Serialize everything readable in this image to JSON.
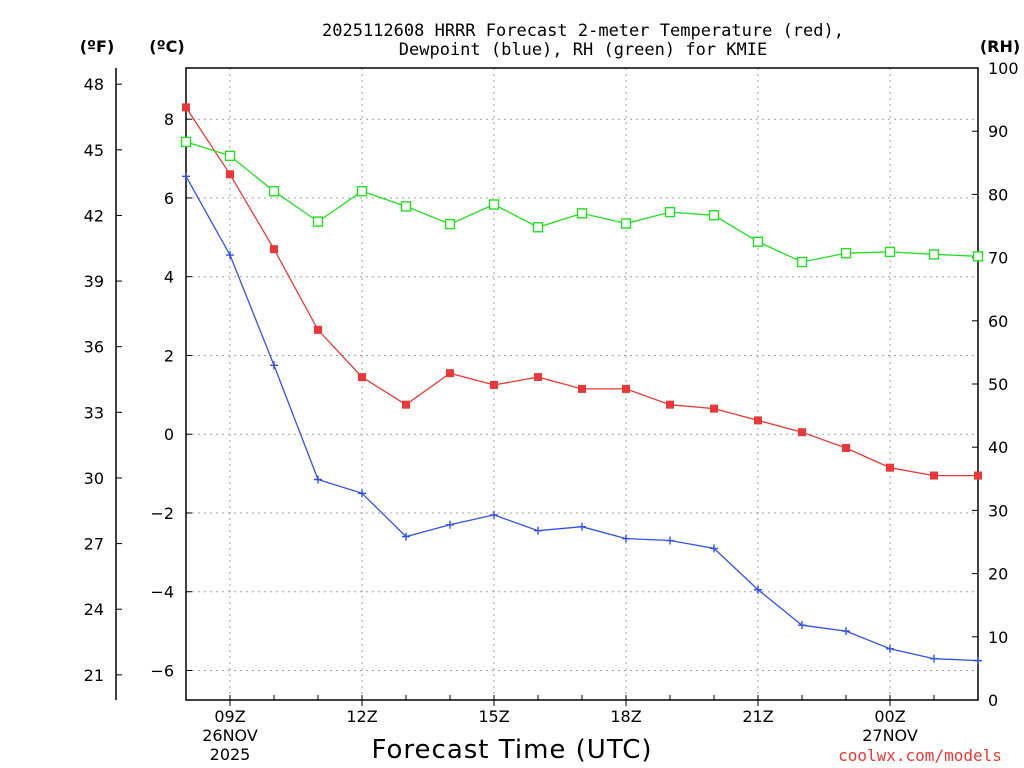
{
  "chart_data": {
    "type": "line",
    "title_line1": "2025112608 HRRR Forecast 2-meter Temperature (red),",
    "title_line2": "Dewpoint (blue), RH (green) for KMIE",
    "unit_f": "(ºF)",
    "unit_c": "(ºC)",
    "unit_rh": "(RH)",
    "xlabel": "Forecast Time (UTC)",
    "credit": "coolwx.com/models",
    "x_hours": [
      8,
      9,
      10,
      11,
      12,
      13,
      14,
      15,
      16,
      17,
      18,
      19,
      20,
      21,
      22,
      23,
      24,
      25,
      26
    ],
    "x_range": [
      8,
      26
    ],
    "c_range": [
      -6.75,
      9.3
    ],
    "rh_range": [
      0,
      100
    ],
    "f_ticks": [
      "48",
      "45",
      "42",
      "39",
      "36",
      "33",
      "30",
      "27",
      "24",
      "21"
    ],
    "c_ticks": [
      "8",
      "6",
      "4",
      "2",
      "0",
      "−2",
      "−4",
      "−6"
    ],
    "rh_ticks": [
      "100",
      "90",
      "80",
      "70",
      "60",
      "50",
      "40",
      "30",
      "20",
      "10",
      "0"
    ],
    "x_ticks": [
      {
        "hour": 9,
        "label": "09Z",
        "date": "26NOV",
        "year": "2025"
      },
      {
        "hour": 12,
        "label": "12Z",
        "date": "",
        "year": ""
      },
      {
        "hour": 15,
        "label": "15Z",
        "date": "",
        "year": ""
      },
      {
        "hour": 18,
        "label": "18Z",
        "date": "",
        "year": ""
      },
      {
        "hour": 21,
        "label": "21Z",
        "date": "",
        "year": ""
      },
      {
        "hour": 24,
        "label": "00Z",
        "date": "27NOV",
        "year": ""
      }
    ],
    "series": [
      {
        "name": "Temperature",
        "color": "#e83838",
        "marker": "filled-square",
        "values": [
          8.3,
          6.6,
          4.7,
          2.65,
          1.45,
          0.75,
          1.55,
          1.25,
          1.45,
          1.15,
          1.15,
          0.75,
          0.65,
          0.35,
          0.05,
          -0.35,
          -0.85,
          -1.05,
          -1.05
        ]
      },
      {
        "name": "Dewpoint",
        "color": "#3050e8",
        "marker": "plus",
        "values": [
          6.55,
          4.55,
          1.75,
          -1.15,
          -1.5,
          -2.6,
          -2.3,
          -2.05,
          -2.45,
          -2.35,
          -2.65,
          -2.7,
          -2.9,
          -3.95,
          -4.85,
          -5.0,
          -5.45,
          -5.7,
          -5.75
        ]
      },
      {
        "name": "RH",
        "color": "#22dd22",
        "marker": "open-square",
        "values": [
          88.3,
          86.1,
          80.5,
          75.7,
          80.5,
          78.1,
          75.3,
          78.4,
          74.8,
          77.0,
          75.4,
          77.2,
          76.7,
          72.5,
          69.3,
          70.7,
          70.9,
          70.5,
          70.2
        ]
      }
    ]
  }
}
